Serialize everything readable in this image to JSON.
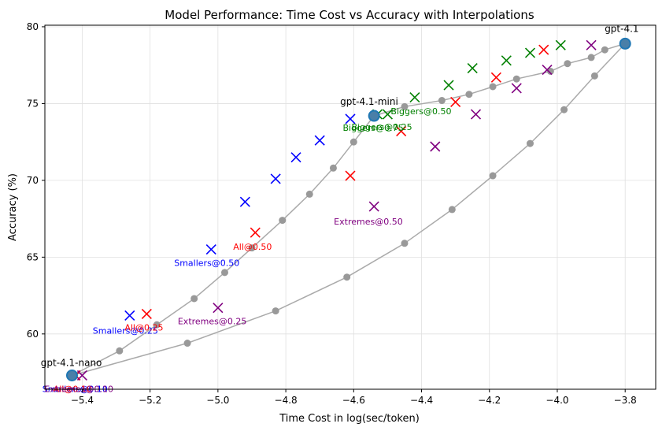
{
  "chart_data": {
    "type": "scatter",
    "title": "Model Performance: Time Cost vs Accuracy with Interpolations",
    "xlabel": "Time Cost in log(sec/token)",
    "ylabel": "Accuracy (%)",
    "xlim": [
      -5.51,
      -3.71
    ],
    "ylim": [
      56.4,
      80.1
    ],
    "xticks": [
      -5.4,
      -5.2,
      -5.0,
      -4.8,
      -4.6,
      -4.4,
      -4.2,
      -4.0,
      -3.8
    ],
    "xtick_labels": [
      "−5.4",
      "−5.2",
      "−5.0",
      "−4.8",
      "−4.6",
      "−4.4",
      "−4.2",
      "−4.0",
      "−3.8"
    ],
    "yticks": [
      60,
      65,
      70,
      75,
      80
    ],
    "ytick_labels": [
      "60",
      "65",
      "70",
      "75",
      "80"
    ],
    "grid": true,
    "models": [
      {
        "name": "gpt-4.1-nano",
        "x": -5.43,
        "y": 57.3
      },
      {
        "name": "gpt-4.1-mini",
        "x": -4.54,
        "y": 74.2
      },
      {
        "name": "gpt-4.1",
        "x": -3.8,
        "y": 78.9
      }
    ],
    "curves": [
      {
        "points": [
          [
            -5.43,
            57.3
          ],
          [
            -5.29,
            58.9
          ],
          [
            -5.18,
            60.6
          ],
          [
            -5.07,
            62.3
          ],
          [
            -4.98,
            64.0
          ],
          [
            -4.9,
            65.6
          ],
          [
            -4.81,
            67.4
          ],
          [
            -4.73,
            69.1
          ],
          [
            -4.66,
            70.8
          ],
          [
            -4.6,
            72.5
          ],
          [
            -4.54,
            74.2
          ]
        ]
      },
      {
        "points": [
          [
            -4.54,
            74.2
          ],
          [
            -4.45,
            74.8
          ],
          [
            -4.34,
            75.2
          ],
          [
            -4.26,
            75.6
          ],
          [
            -4.19,
            76.1
          ],
          [
            -4.12,
            76.6
          ],
          [
            -4.02,
            77.1
          ],
          [
            -3.97,
            77.6
          ],
          [
            -3.9,
            78.0
          ],
          [
            -3.86,
            78.5
          ],
          [
            -3.8,
            78.9
          ]
        ]
      },
      {
        "points": [
          [
            -5.43,
            57.3
          ],
          [
            -5.09,
            59.4
          ],
          [
            -4.83,
            61.5
          ],
          [
            -4.62,
            63.7
          ],
          [
            -4.45,
            65.9
          ],
          [
            -4.31,
            68.1
          ],
          [
            -4.19,
            70.3
          ],
          [
            -4.08,
            72.4
          ],
          [
            -3.98,
            74.6
          ],
          [
            -3.89,
            76.8
          ],
          [
            -3.8,
            78.9
          ]
        ]
      }
    ],
    "series": [
      {
        "name": "Smallers",
        "color": "#0000ff",
        "points": [
          [
            -5.42,
            57.3
          ],
          [
            -5.26,
            61.2
          ],
          [
            -5.02,
            65.5
          ],
          [
            -4.92,
            68.6
          ],
          [
            -4.83,
            70.1
          ],
          [
            -4.77,
            71.5
          ],
          [
            -4.7,
            72.6
          ],
          [
            -4.61,
            74.0
          ]
        ]
      },
      {
        "name": "Biggers",
        "color": "#008000",
        "points": [
          [
            -4.53,
            74.3
          ],
          [
            -4.5,
            74.3
          ],
          [
            -4.42,
            75.4
          ],
          [
            -4.32,
            76.2
          ],
          [
            -4.25,
            77.3
          ],
          [
            -4.15,
            77.8
          ],
          [
            -4.08,
            78.3
          ],
          [
            -3.99,
            78.8
          ]
        ]
      },
      {
        "name": "All",
        "color": "#ff0000",
        "points": [
          [
            -5.42,
            57.3
          ],
          [
            -5.21,
            61.3
          ],
          [
            -4.89,
            66.6
          ],
          [
            -4.61,
            70.3
          ],
          [
            -4.46,
            73.2
          ],
          [
            -4.3,
            75.1
          ],
          [
            -4.18,
            76.7
          ],
          [
            -4.04,
            78.5
          ]
        ]
      },
      {
        "name": "Extremes",
        "color": "#800080",
        "points": [
          [
            -5.4,
            57.3
          ],
          [
            -5.0,
            61.7
          ],
          [
            -4.54,
            68.3
          ],
          [
            -4.36,
            72.2
          ],
          [
            -4.24,
            74.3
          ],
          [
            -4.12,
            76.0
          ],
          [
            -4.03,
            77.2
          ],
          [
            -3.9,
            78.8
          ]
        ]
      }
    ],
    "annotations": [
      {
        "text": "gpt-4.1-nano",
        "color": "#000000",
        "x": -5.42,
        "y": 57.3,
        "dx": -44,
        "dy": -12
      },
      {
        "text": "gpt-4.1-mini",
        "color": "#000000",
        "x": -4.54,
        "y": 74.2,
        "dx": -43,
        "dy": -14
      },
      {
        "text": "gpt-4.1",
        "color": "#000000",
        "x": -3.8,
        "y": 78.9,
        "dx": -26,
        "dy": -15
      },
      {
        "text": "Smallers@0.50",
        "color": "#0000ff",
        "x": -5.02,
        "y": 65.5,
        "dx": -47,
        "dy": 21
      },
      {
        "text": "Smallers@0.25",
        "color": "#0000ff",
        "x": -5.26,
        "y": 61.2,
        "dx": -47,
        "dy": 23
      },
      {
        "text": "All@0.50",
        "color": "#ff0000",
        "x": -4.89,
        "y": 66.6,
        "dx": -28,
        "dy": 22
      },
      {
        "text": "All@0.25",
        "color": "#ff0000",
        "x": -5.21,
        "y": 61.3,
        "dx": -28,
        "dy": 21
      },
      {
        "text": "Extremes@0.50",
        "color": "#800080",
        "x": -4.54,
        "y": 68.3,
        "dx": -51,
        "dy": 23
      },
      {
        "text": "Extremes@0.25",
        "color": "#800080",
        "x": -5.0,
        "y": 61.7,
        "dx": -51,
        "dy": 21
      },
      {
        "text": "Biggers@0.50",
        "color": "#008000",
        "x": -4.5,
        "y": 74.3,
        "dx": 4,
        "dy": 0
      },
      {
        "text": "Biggers@0.25",
        "color": "#008000",
        "x": -4.53,
        "y": 74.3,
        "dx": -33,
        "dy": 20
      },
      {
        "text": "Biggers@0.75",
        "color": "#008000",
        "x": -4.53,
        "y": 74.3,
        "dx": -44,
        "dy": 21
      },
      {
        "text": "Smallers@0.10",
        "color": "#0000ff",
        "x": -5.42,
        "y": 57.3,
        "dx": -42,
        "dy": 21
      },
      {
        "text": "All@0.10",
        "color": "#ff0000",
        "x": -5.42,
        "y": 57.3,
        "dx": -28,
        "dy": 21
      },
      {
        "text": "Extremes@0.10",
        "color": "#800080",
        "x": -5.4,
        "y": 57.3,
        "dx": -48,
        "dy": 21
      }
    ]
  }
}
